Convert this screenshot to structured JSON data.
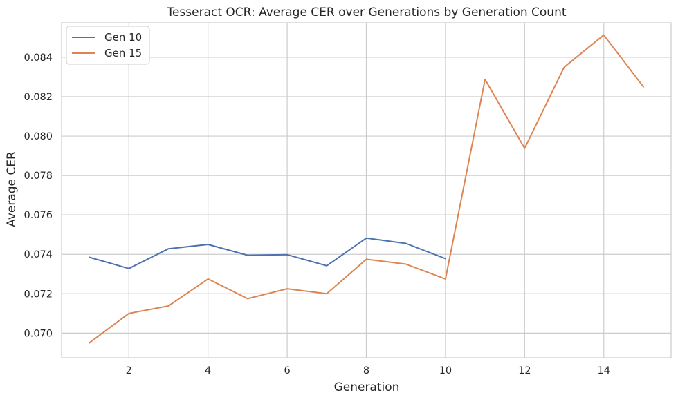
{
  "chart_data": {
    "type": "line",
    "title": "Tesseract OCR: Average CER over Generations by Generation Count",
    "xlabel": "Generation",
    "ylabel": "Average CER",
    "xlim": [
      0.3,
      15.7
    ],
    "ylim": [
      0.06875,
      0.08575
    ],
    "xticks": [
      2,
      4,
      6,
      8,
      10,
      12,
      14
    ],
    "xtick_labels": [
      "2",
      "4",
      "6",
      "8",
      "10",
      "12",
      "14"
    ],
    "yticks": [
      0.07,
      0.072,
      0.074,
      0.076,
      0.078,
      0.08,
      0.082,
      0.084
    ],
    "ytick_labels": [
      "0.070",
      "0.072",
      "0.074",
      "0.076",
      "0.078",
      "0.080",
      "0.082",
      "0.084"
    ],
    "grid": true,
    "legend_position": "top-left",
    "series": [
      {
        "name": "Gen 10",
        "color": "#4c72b0",
        "x": [
          1,
          2,
          3,
          4,
          5,
          6,
          7,
          8,
          9,
          10
        ],
        "y": [
          0.07385,
          0.07328,
          0.07428,
          0.0745,
          0.07395,
          0.07398,
          0.07342,
          0.07482,
          0.07455,
          0.07378
        ]
      },
      {
        "name": "Gen 15",
        "color": "#dd8452",
        "x": [
          1,
          2,
          3,
          4,
          5,
          6,
          7,
          8,
          9,
          10,
          11,
          12,
          13,
          14,
          15
        ],
        "y": [
          0.0695,
          0.071,
          0.07138,
          0.07275,
          0.07175,
          0.07225,
          0.072,
          0.07375,
          0.0735,
          0.07275,
          0.08288,
          0.07938,
          0.0835,
          0.08513,
          0.0825
        ]
      }
    ]
  }
}
